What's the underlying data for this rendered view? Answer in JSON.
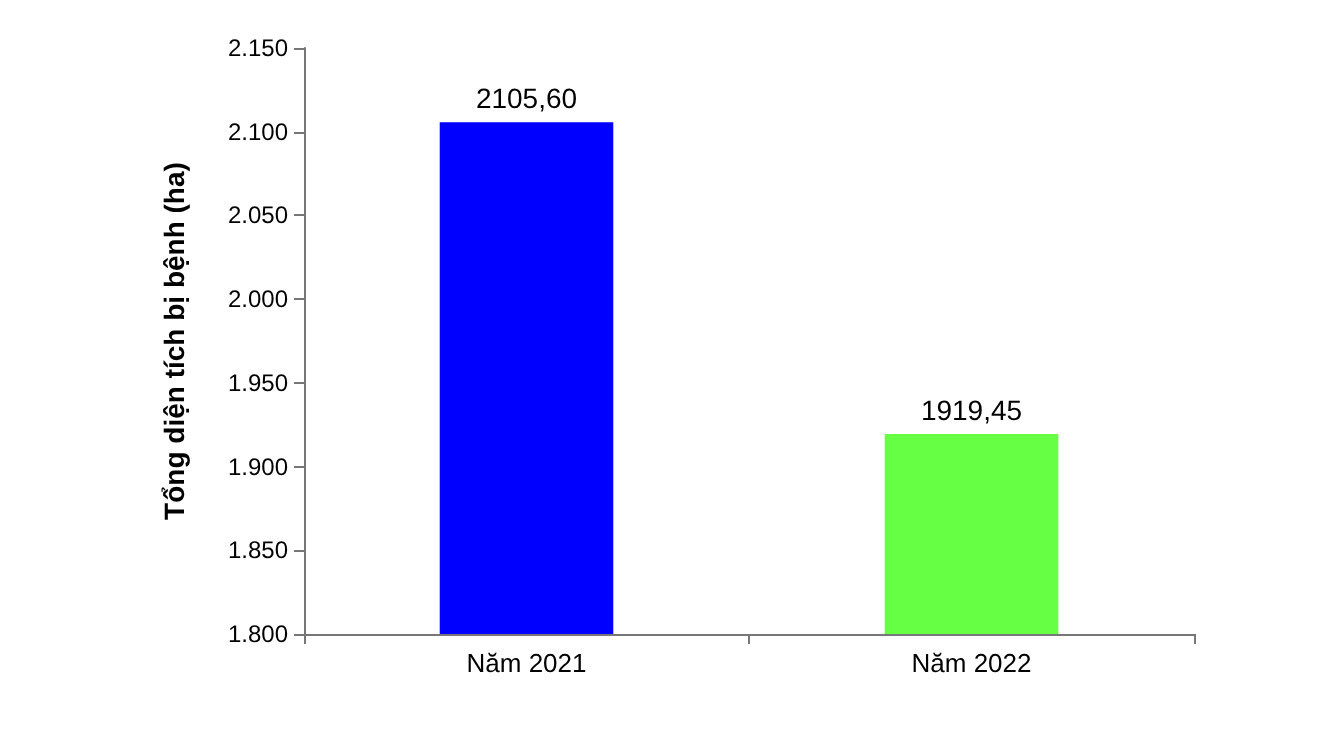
{
  "chart_data": {
    "type": "bar",
    "ylabel": "Tổng diện tích bị bệnh (ha)",
    "categories": [
      "Năm 2021",
      "Năm 2022"
    ],
    "values": [
      2105.6,
      1919.45
    ],
    "colors": [
      "#0000ff",
      "#66ff44"
    ],
    "value_labels": [
      "2105,60",
      "1919,45"
    ],
    "ylim": [
      1800,
      2150
    ],
    "yticks": [
      {
        "value": 1800,
        "label": "1.800"
      },
      {
        "value": 1850,
        "label": "1.850"
      },
      {
        "value": 1900,
        "label": "1.900"
      },
      {
        "value": 1950,
        "label": "1.950"
      },
      {
        "value": 2000,
        "label": "2.000"
      },
      {
        "value": 2050,
        "label": "2.050"
      },
      {
        "value": 2100,
        "label": "2.100"
      },
      {
        "value": 2150,
        "label": "2.150"
      }
    ],
    "grid": false
  }
}
